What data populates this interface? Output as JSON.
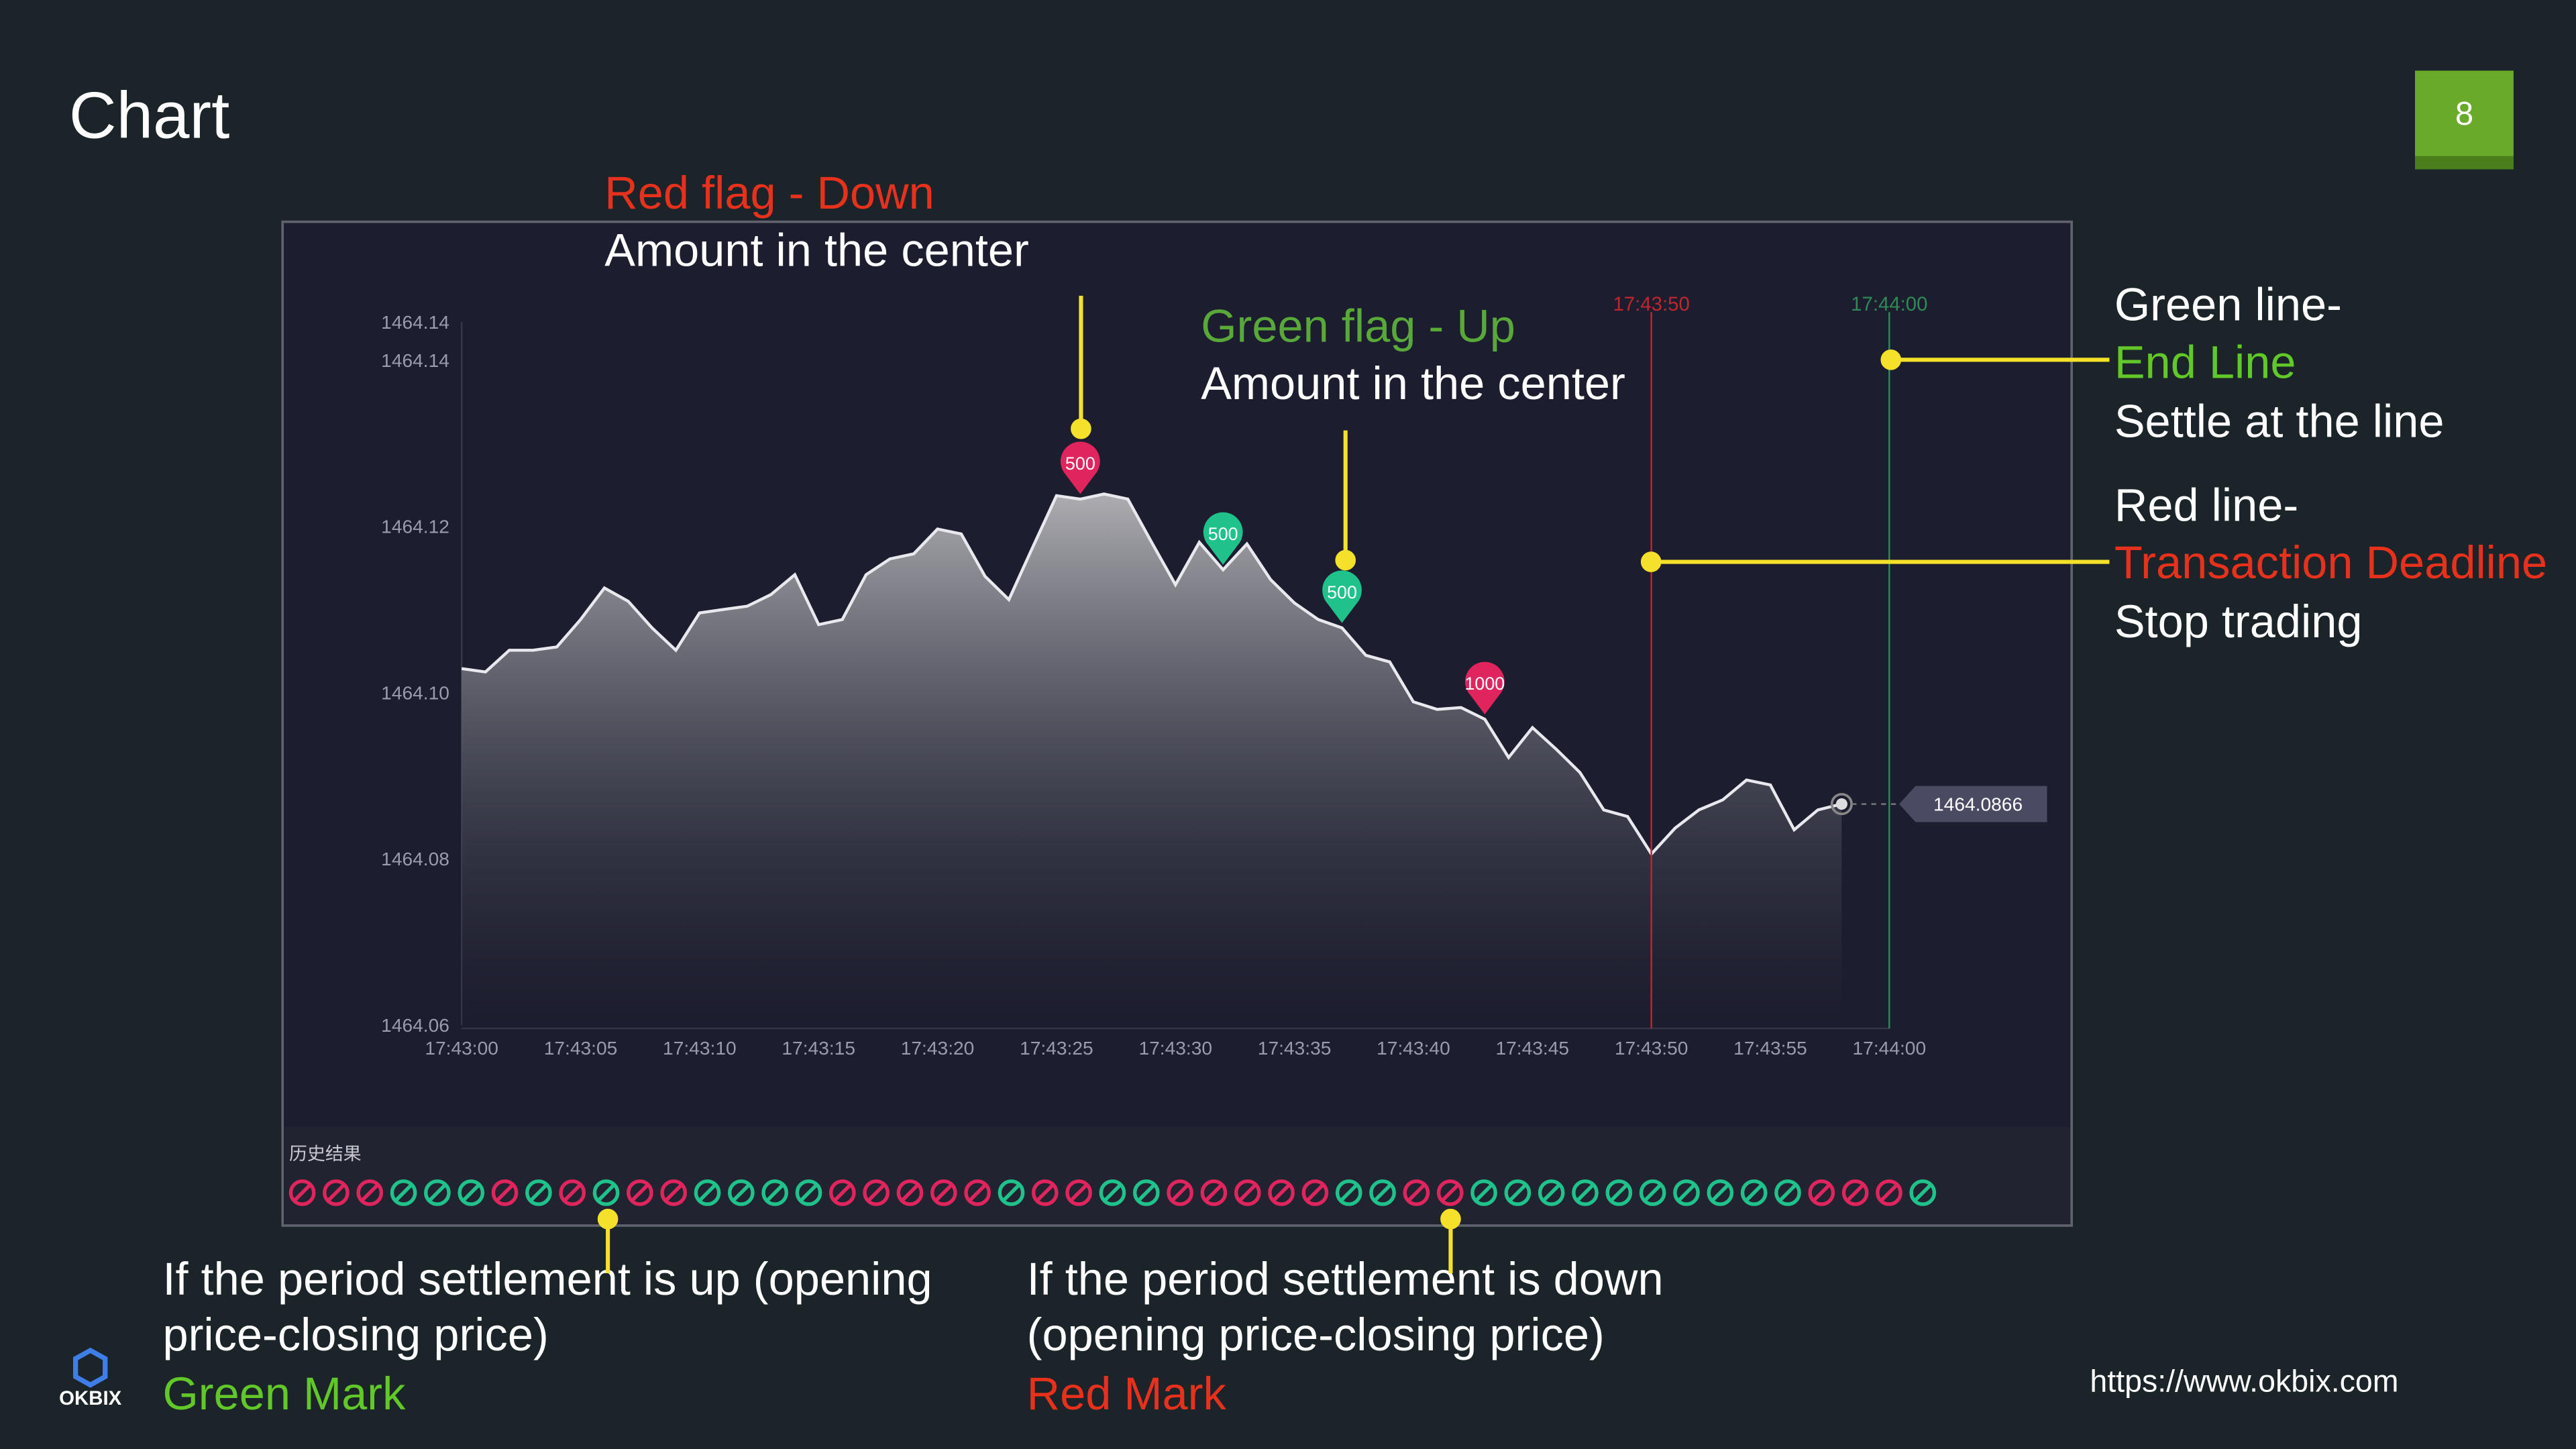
{
  "slide": {
    "title": "Chart",
    "page_number": "8",
    "red_flag_title": "Red flag - Down",
    "red_flag_note": "Amount in the center",
    "green_flag_title": "Green flag - Up",
    "green_flag_note": "Amount in the center",
    "green_line_title": "Green line-",
    "green_line_name": "End Line",
    "green_line_note": "Settle at the line",
    "red_line_title": "Red line-",
    "red_line_name": "Transaction Deadline",
    "red_line_note": "Stop trading",
    "up_note_1": "If the period settlement is up (opening",
    "up_note_2": "price-closing price)",
    "up_note_3": "Green Mark",
    "down_note_1": "If the period settlement is down",
    "down_note_2": "(opening price-closing price)",
    "down_note_3": "Red Mark",
    "logo": "OKBIX",
    "url": "https://www.okbix.com"
  },
  "chart_data": {
    "type": "line",
    "x": [
      "17:43:00",
      "17:43:01",
      "17:43:02",
      "17:43:03",
      "17:43:04",
      "17:43:05",
      "17:43:06",
      "17:43:07",
      "17:43:08",
      "17:43:09",
      "17:43:10",
      "17:43:11",
      "17:43:12",
      "17:43:13",
      "17:43:14",
      "17:43:15",
      "17:43:16",
      "17:43:17",
      "17:43:18",
      "17:43:19",
      "17:43:20",
      "17:43:21",
      "17:43:22",
      "17:43:23",
      "17:43:24",
      "17:43:25",
      "17:43:26",
      "17:43:27",
      "17:43:28",
      "17:43:29",
      "17:43:30",
      "17:43:31",
      "17:43:32",
      "17:43:33",
      "17:43:34",
      "17:43:35",
      "17:43:36",
      "17:43:37",
      "17:43:38",
      "17:43:39",
      "17:43:40",
      "17:43:41",
      "17:43:42",
      "17:43:43",
      "17:43:44",
      "17:43:45",
      "17:43:46",
      "17:43:47",
      "17:43:48",
      "17:43:49",
      "17:43:50",
      "17:43:51",
      "17:43:52",
      "17:43:53",
      "17:43:54",
      "17:43:55",
      "17:43:56",
      "17:43:57",
      "17:43:58"
    ],
    "series": [
      {
        "color": "#e8e8ee",
        "values": [
          1464.1029,
          1464.1025,
          1464.1051,
          1464.1051,
          1464.1055,
          1464.1088,
          1464.1126,
          1464.111,
          1464.1078,
          1464.1051,
          1464.1096,
          1464.11,
          1464.1104,
          1464.1118,
          1464.1142,
          1464.1082,
          1464.1088,
          1464.1142,
          1464.1161,
          1464.1167,
          1464.1197,
          1464.1191,
          1464.114,
          1464.1112,
          1464.1175,
          1464.1237,
          1464.1233,
          1464.1239,
          1464.1233,
          1464.1181,
          1464.113,
          1464.1181,
          1464.1148,
          1464.1179,
          1464.1136,
          1464.1108,
          1464.1088,
          1464.1078,
          1464.1045,
          1464.1037,
          1464.0989,
          1464.098,
          1464.0982,
          1464.0968,
          1464.0922,
          1464.0958,
          1464.0932,
          1464.0904,
          1464.0859,
          1464.0851,
          1464.0806,
          1464.0837,
          1464.0859,
          1464.0871,
          1464.0895,
          1464.0889,
          1464.0835,
          1464.0859,
          1464.0866
        ]
      }
    ],
    "xlim": [
      "17:43:00",
      "17:44:00"
    ],
    "xticks": [
      "17:43:00",
      "17:43:05",
      "17:43:10",
      "17:43:15",
      "17:43:20",
      "17:43:25",
      "17:43:30",
      "17:43:35",
      "17:43:40",
      "17:43:45",
      "17:43:50",
      "17:43:55",
      "17:44:00"
    ],
    "ylim": [
      1464.06,
      1464.1446
    ],
    "yticks": [
      1464.06,
      1464.08,
      {
        "value": 1464.1,
        "label": "1464.10"
      },
      1464.12,
      1464.14,
      {
        "value": 1464.1446,
        "label": "1464.14"
      }
    ],
    "grid": false,
    "flags": [
      {
        "x": "17:43:26",
        "amount": 500,
        "color": "#e0245e"
      },
      {
        "x": "17:43:32",
        "amount": 500,
        "color": "#1fc28a"
      },
      {
        "x": "17:43:37",
        "amount": 500,
        "color": "#1fc28a"
      },
      {
        "x": "17:43:43",
        "amount": 1000,
        "color": "#e0245e"
      }
    ],
    "deadline": {
      "x": "17:43:50",
      "color": "#c0262d"
    },
    "end_line": {
      "x": "17:44:00",
      "color": "#2f8a55"
    },
    "history_label": "历史结果",
    "history": [
      "#e0245e",
      "#e0245e",
      "#e0245e",
      "#1fc28a",
      "#1fc28a",
      "#1fc28a",
      "#e0245e",
      "#1fc28a",
      "#e0245e",
      "#1fc28a",
      "#e0245e",
      "#e0245e",
      "#1fc28a",
      "#1fc28a",
      "#1fc28a",
      "#1fc28a",
      "#e0245e",
      "#e0245e",
      "#e0245e",
      "#e0245e",
      "#e0245e",
      "#1fc28a",
      "#e0245e",
      "#e0245e",
      "#1fc28a",
      "#1fc28a",
      "#e0245e",
      "#e0245e",
      "#e0245e",
      "#e0245e",
      "#e0245e",
      "#1fc28a",
      "#1fc28a",
      "#e0245e",
      "#e0245e",
      "#1fc28a",
      "#1fc28a",
      "#1fc28a",
      "#1fc28a",
      "#1fc28a",
      "#1fc28a",
      "#1fc28a",
      "#1fc28a",
      "#1fc28a",
      "#1fc28a",
      "#e0245e",
      "#e0245e",
      "#e0245e",
      "#1fc28a"
    ]
  }
}
